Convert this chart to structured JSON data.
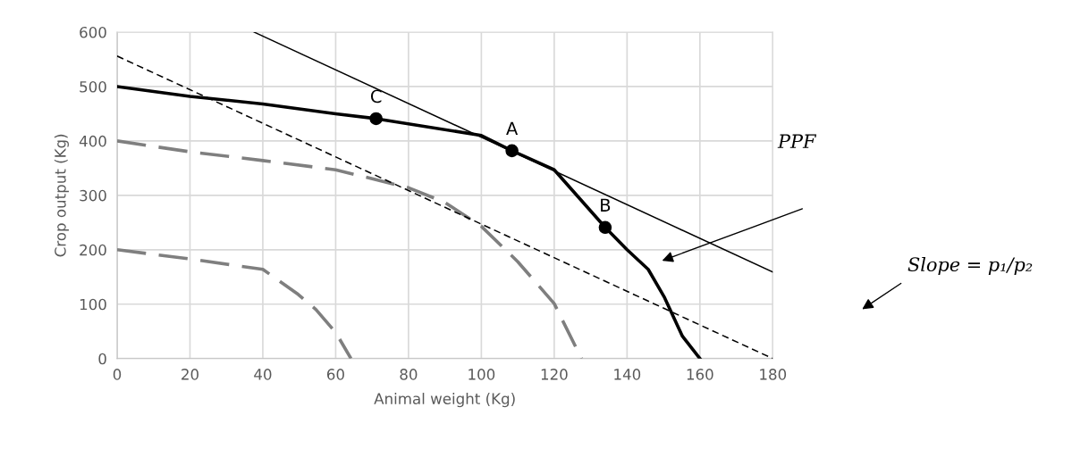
{
  "chart_data": {
    "type": "line",
    "xlabel": "Animal weight (Kg)",
    "ylabel": "Crop output (Kg)",
    "xlim": [
      0,
      180
    ],
    "xticks": [
      0,
      20,
      40,
      60,
      80,
      100,
      120,
      140,
      160,
      180
    ],
    "ylim": [
      0,
      600
    ],
    "yticks": [
      0,
      100,
      200,
      300,
      400,
      500,
      600
    ],
    "grid": true,
    "series": [
      {
        "color": "#000000",
        "line_style": "solid",
        "x": [
          0,
          20,
          40,
          60,
          71.1,
          100,
          108.4,
          120,
          134,
          140,
          145.8,
          150.3,
          155.2,
          160
        ],
        "values": [
          500,
          482,
          468,
          450,
          441,
          410,
          382,
          347,
          241,
          200,
          164,
          112,
          41,
          0
        ]
      },
      {
        "color": "#7f7f7f",
        "line_style": "dashed",
        "x": [
          0,
          20,
          40,
          60,
          80,
          90,
          100,
          110,
          120,
          127.5
        ],
        "values": [
          400,
          380,
          364,
          347,
          314,
          287,
          243,
          178,
          101,
          0
        ]
      },
      {
        "color": "#7f7f7f",
        "line_style": "dashed",
        "x": [
          0,
          20,
          40,
          49.7,
          54.6,
          60.1,
          64.2
        ],
        "values": [
          200,
          183,
          164,
          118,
          90,
          47,
          0
        ]
      },
      {
        "color": "#000000",
        "line_style": "solid",
        "x": [
          37.6,
          180
        ],
        "values": [
          600,
          159
        ]
      },
      {
        "color": "#000000",
        "line_style": "dashed",
        "x": [
          0,
          180
        ],
        "values": [
          556,
          0
        ]
      },
      {
        "type": "scatter",
        "color": "#000000",
        "marker": "circle",
        "x": [
          71.1,
          108.4,
          134
        ],
        "values": [
          441,
          382,
          241
        ]
      }
    ],
    "annotations": [
      {
        "text": "C",
        "x": 71.1,
        "y": 441
      },
      {
        "text": "A",
        "x": 108.4,
        "y": 382
      },
      {
        "text": "B",
        "x": 134,
        "y": 241
      },
      "PPF",
      "Slope = p₁/p₂"
    ]
  }
}
